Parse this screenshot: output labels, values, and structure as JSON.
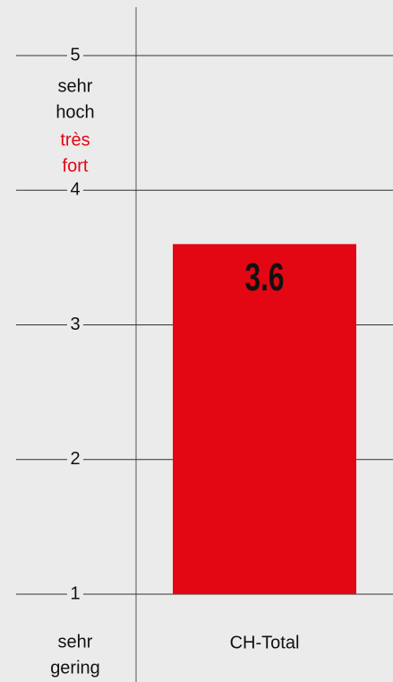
{
  "chart_data": {
    "type": "bar",
    "categories": [
      "CH-Total"
    ],
    "values": [
      3.6
    ],
    "color": "#e30613",
    "ylim": [
      1,
      5
    ],
    "yticks": [
      1,
      2,
      3,
      4,
      5
    ],
    "grid": true,
    "top_label_de": [
      "sehr",
      "hoch"
    ],
    "top_label_fr": [
      "très",
      "fort"
    ],
    "top_label_fr_color": "#e30613",
    "bottom_label_de": [
      "sehr",
      "gering"
    ]
  }
}
